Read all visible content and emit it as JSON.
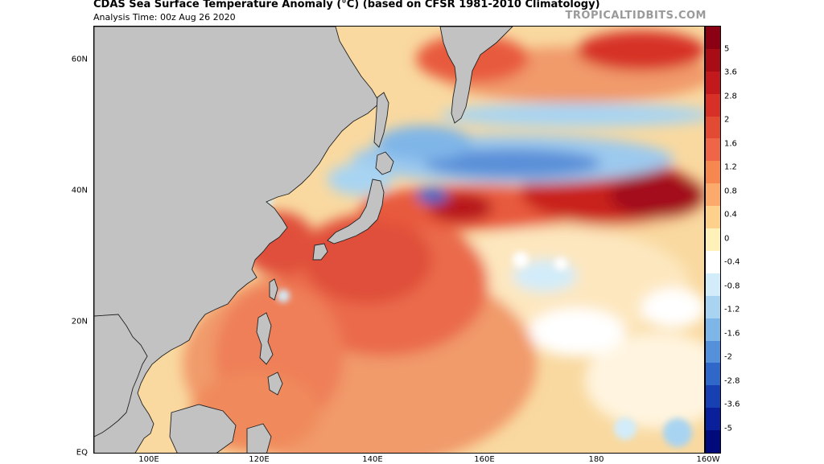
{
  "header": {
    "title": "CDAS Sea Surface Temperature Anomaly (°C) (based on CFSR 1981-2010 Climatology)",
    "analysis_time": "Analysis Time: 00z Aug 26 2020",
    "brand": "TROPICALTIDBITS.COM"
  },
  "map": {
    "lat_labels": [
      "60N",
      "40N",
      "20N",
      "EQ"
    ],
    "lon_labels": [
      "100E",
      "120E",
      "140E",
      "160E",
      "180",
      "160W"
    ],
    "land_color": "#c2c2c2",
    "ocean_base_color": "#f6c48a",
    "anomaly_regions": [
      {
        "name": "kuroshio-extension-warm",
        "anomaly": 4.0
      },
      {
        "name": "oyashio-cold",
        "anomaly": -2.0
      },
      {
        "name": "east-china-sea-warm",
        "anomaly": 2.8
      },
      {
        "name": "sea-of-okhotsk-warm",
        "anomaly": 2.0
      },
      {
        "name": "tropical-west-pacific-warm",
        "anomaly": 1.6
      },
      {
        "name": "central-pacific-near-normal",
        "anomaly": 0.0
      }
    ]
  },
  "colorbar": {
    "labels": [
      "5",
      "3.6",
      "2.8",
      "2",
      "1.6",
      "1.2",
      "0.8",
      "0.4",
      "0",
      "-0.4",
      "-0.8",
      "-1.2",
      "-1.6",
      "-2",
      "-2.8",
      "-3.6",
      "-5"
    ],
    "colors": [
      "#8b0012",
      "#a80d16",
      "#c2191c",
      "#d73027",
      "#e34a33",
      "#ef6548",
      "#f6884f",
      "#fbaa6c",
      "#fdd08c",
      "#fff1b8",
      "#ffffff",
      "#d2ecfa",
      "#a8d4f2",
      "#7fb6e8",
      "#5590da",
      "#2f68c8",
      "#1740b3",
      "#0a1f9a",
      "#000a7a"
    ]
  }
}
